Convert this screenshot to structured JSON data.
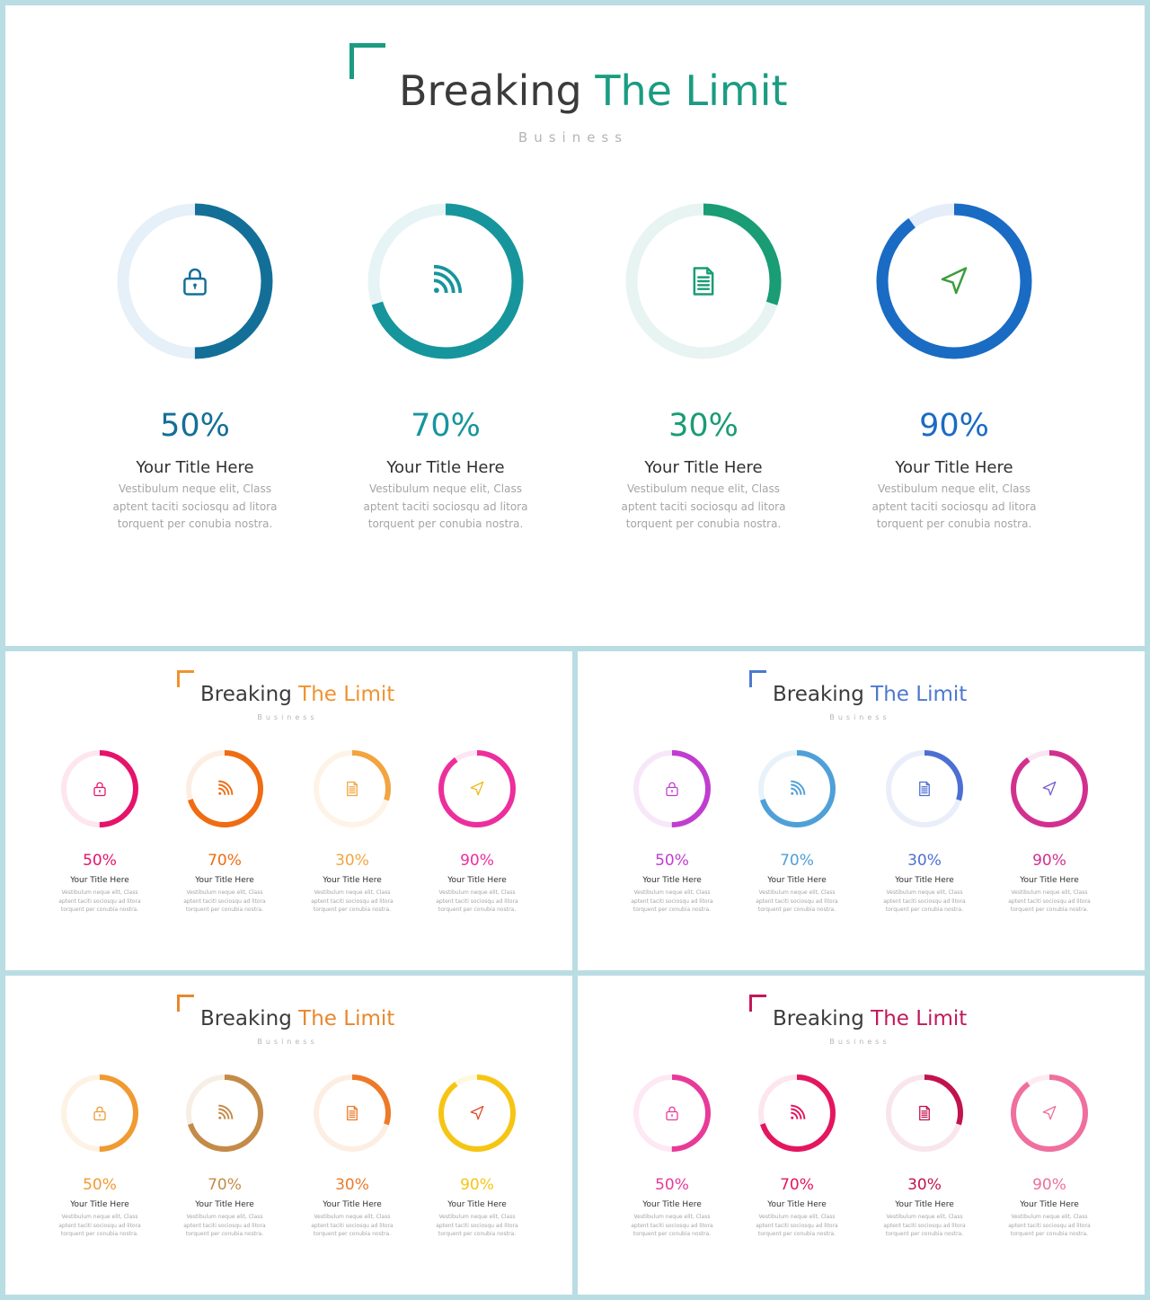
{
  "slides": [
    {
      "title_part1": "Breaking ",
      "title_part2": "The Limit",
      "subtitle": "Business",
      "accent": "#1a9c82",
      "items": [
        {
          "percent": 50,
          "label": "50%",
          "title": "Your Title Here",
          "desc": "Vestibulum neque elit, Class aptent taciti sociosqu ad litora torquent per conubia nostra.",
          "icon": "lock-icon",
          "color": "#136f98",
          "track": "#e6f0f8",
          "icon_color": "#136f98",
          "pct_color": "#136f98"
        },
        {
          "percent": 70,
          "label": "70%",
          "title": "Your Title Here",
          "desc": "Vestibulum neque elit, Class aptent taciti sociosqu ad litora torquent per conubia nostra.",
          "icon": "rss-icon",
          "color": "#16959c",
          "track": "#e6f4f6",
          "icon_color": "#16959c",
          "pct_color": "#16959c"
        },
        {
          "percent": 30,
          "label": "30%",
          "title": "Your Title Here",
          "desc": "Vestibulum neque elit, Class aptent taciti sociosqu ad litora torquent per conubia nostra.",
          "icon": "document-icon",
          "color": "#1a9c75",
          "track": "#e7f4f1",
          "icon_color": "#1a9c75",
          "pct_color": "#1a9c75"
        },
        {
          "percent": 90,
          "label": "90%",
          "title": "Your Title Here",
          "desc": "Vestibulum neque elit, Class aptent taciti sociosqu ad litora torquent per conubia nostra.",
          "icon": "navigation-arrow-icon",
          "color": "#1a6bc4",
          "track": "#e5eef8",
          "icon_color": "#3d9c3d",
          "pct_color": "#1a6bc4"
        }
      ]
    },
    {
      "title_part1": "Breaking ",
      "title_part2": "The Limit",
      "subtitle": "Business",
      "accent": "#f0922f",
      "items": [
        {
          "percent": 50,
          "label": "50%",
          "title": "Your Title Here",
          "desc": "Vestibulum neque elit, Class aptent taciti sociosqu ad litora torquent per conubia nostra.",
          "icon": "lock-icon",
          "color": "#e5136a",
          "track": "#fde6ee",
          "icon_color": "#e5136a",
          "pct_color": "#e5136a"
        },
        {
          "percent": 70,
          "label": "70%",
          "title": "Your Title Here",
          "desc": "Vestibulum neque elit, Class aptent taciti sociosqu ad litora torquent per conubia nostra.",
          "icon": "rss-icon",
          "color": "#ef6c12",
          "track": "#fdeee3",
          "icon_color": "#ef6c12",
          "pct_color": "#ef6c12"
        },
        {
          "percent": 30,
          "label": "30%",
          "title": "Your Title Here",
          "desc": "Vestibulum neque elit, Class aptent taciti sociosqu ad litora torquent per conubia nostra.",
          "icon": "document-icon",
          "color": "#f2a440",
          "track": "#fef3e7",
          "icon_color": "#f2a440",
          "pct_color": "#f2a440"
        },
        {
          "percent": 90,
          "label": "90%",
          "title": "Your Title Here",
          "desc": "Vestibulum neque elit, Class aptent taciti sociosqu ad litora torquent per conubia nostra.",
          "icon": "navigation-arrow-icon",
          "color": "#ec2f9c",
          "track": "#fde6f3",
          "icon_color": "#f2b91c",
          "pct_color": "#ec2f9c"
        }
      ]
    },
    {
      "title_part1": "Breaking ",
      "title_part2": "The Limit",
      "subtitle": "Business",
      "accent": "#4d78cf",
      "items": [
        {
          "percent": 50,
          "label": "50%",
          "title": "Your Title Here",
          "desc": "Vestibulum neque elit, Class aptent taciti sociosqu ad litora torquent per conubia nostra.",
          "icon": "lock-icon",
          "color": "#c03dcf",
          "track": "#f7e7f9",
          "icon_color": "#c03dcf",
          "pct_color": "#c03dcf"
        },
        {
          "percent": 70,
          "label": "70%",
          "title": "Your Title Here",
          "desc": "Vestibulum neque elit, Class aptent taciti sociosqu ad litora torquent per conubia nostra.",
          "icon": "rss-icon",
          "color": "#4fa0d8",
          "track": "#e7f2fa",
          "icon_color": "#4fa0d8",
          "pct_color": "#4fa0d8"
        },
        {
          "percent": 30,
          "label": "30%",
          "title": "Your Title Here",
          "desc": "Vestibulum neque elit, Class aptent taciti sociosqu ad litora torquent per conubia nostra.",
          "icon": "document-icon",
          "color": "#4d6fd4",
          "track": "#e9eefa",
          "icon_color": "#4d6fd4",
          "pct_color": "#4d6fd4"
        },
        {
          "percent": 90,
          "label": "90%",
          "title": "Your Title Here",
          "desc": "Vestibulum neque elit, Class aptent taciti sociosqu ad litora torquent per conubia nostra.",
          "icon": "navigation-arrow-icon",
          "color": "#d2308f",
          "track": "#f9e6f1",
          "icon_color": "#7a5cd0",
          "pct_color": "#d2308f"
        }
      ]
    },
    {
      "title_part1": "Breaking ",
      "title_part2": "The Limit",
      "subtitle": "Business",
      "accent": "#e8872c",
      "items": [
        {
          "percent": 50,
          "label": "50%",
          "title": "Your Title Here",
          "desc": "Vestibulum neque elit, Class aptent taciti sociosqu ad litora torquent per conubia nostra.",
          "icon": "lock-icon",
          "color": "#f09a32",
          "track": "#fef2e4",
          "icon_color": "#f09a32",
          "pct_color": "#f09a32"
        },
        {
          "percent": 70,
          "label": "70%",
          "title": "Your Title Here",
          "desc": "Vestibulum neque elit, Class aptent taciti sociosqu ad litora torquent per conubia nostra.",
          "icon": "rss-icon",
          "color": "#c48b48",
          "track": "#f7efe6",
          "icon_color": "#c48b48",
          "pct_color": "#c48b48"
        },
        {
          "percent": 30,
          "label": "30%",
          "title": "Your Title Here",
          "desc": "Vestibulum neque elit, Class aptent taciti sociosqu ad litora torquent per conubia nostra.",
          "icon": "document-icon",
          "color": "#ed7a29",
          "track": "#fdeee3",
          "icon_color": "#ed7a29",
          "pct_color": "#ed7a29"
        },
        {
          "percent": 90,
          "label": "90%",
          "title": "Your Title Here",
          "desc": "Vestibulum neque elit, Class aptent taciti sociosqu ad litora torquent per conubia nostra.",
          "icon": "navigation-arrow-icon",
          "color": "#f6c514",
          "track": "#fef8e1",
          "icon_color": "#e04a2a",
          "pct_color": "#f6c514"
        }
      ]
    },
    {
      "title_part1": "Breaking ",
      "title_part2": "The Limit",
      "subtitle": "Business",
      "accent": "#c2185b",
      "items": [
        {
          "percent": 50,
          "label": "50%",
          "title": "Your Title Here",
          "desc": "Vestibulum neque elit, Class aptent taciti sociosqu ad litora torquent per conubia nostra.",
          "icon": "lock-icon",
          "color": "#e83a98",
          "track": "#fde8f3",
          "icon_color": "#e83a98",
          "pct_color": "#e83a98"
        },
        {
          "percent": 70,
          "label": "70%",
          "title": "Your Title Here",
          "desc": "Vestibulum neque elit, Class aptent taciti sociosqu ad litora torquent per conubia nostra.",
          "icon": "rss-icon",
          "color": "#e3165f",
          "track": "#fde6ee",
          "icon_color": "#e3165f",
          "pct_color": "#e3165f"
        },
        {
          "percent": 30,
          "label": "30%",
          "title": "Your Title Here",
          "desc": "Vestibulum neque elit, Class aptent taciti sociosqu ad litora torquent per conubia nostra.",
          "icon": "document-icon",
          "color": "#c2134e",
          "track": "#f9e5ec",
          "icon_color": "#c2134e",
          "pct_color": "#c2134e"
        },
        {
          "percent": 90,
          "label": "90%",
          "title": "Your Title Here",
          "desc": "Vestibulum neque elit, Class aptent taciti sociosqu ad litora torquent per conubia nostra.",
          "icon": "navigation-arrow-icon",
          "color": "#ef6f9e",
          "track": "#fdebf2",
          "icon_color": "#ef6f9e",
          "pct_color": "#ef6f9e"
        }
      ]
    }
  ]
}
